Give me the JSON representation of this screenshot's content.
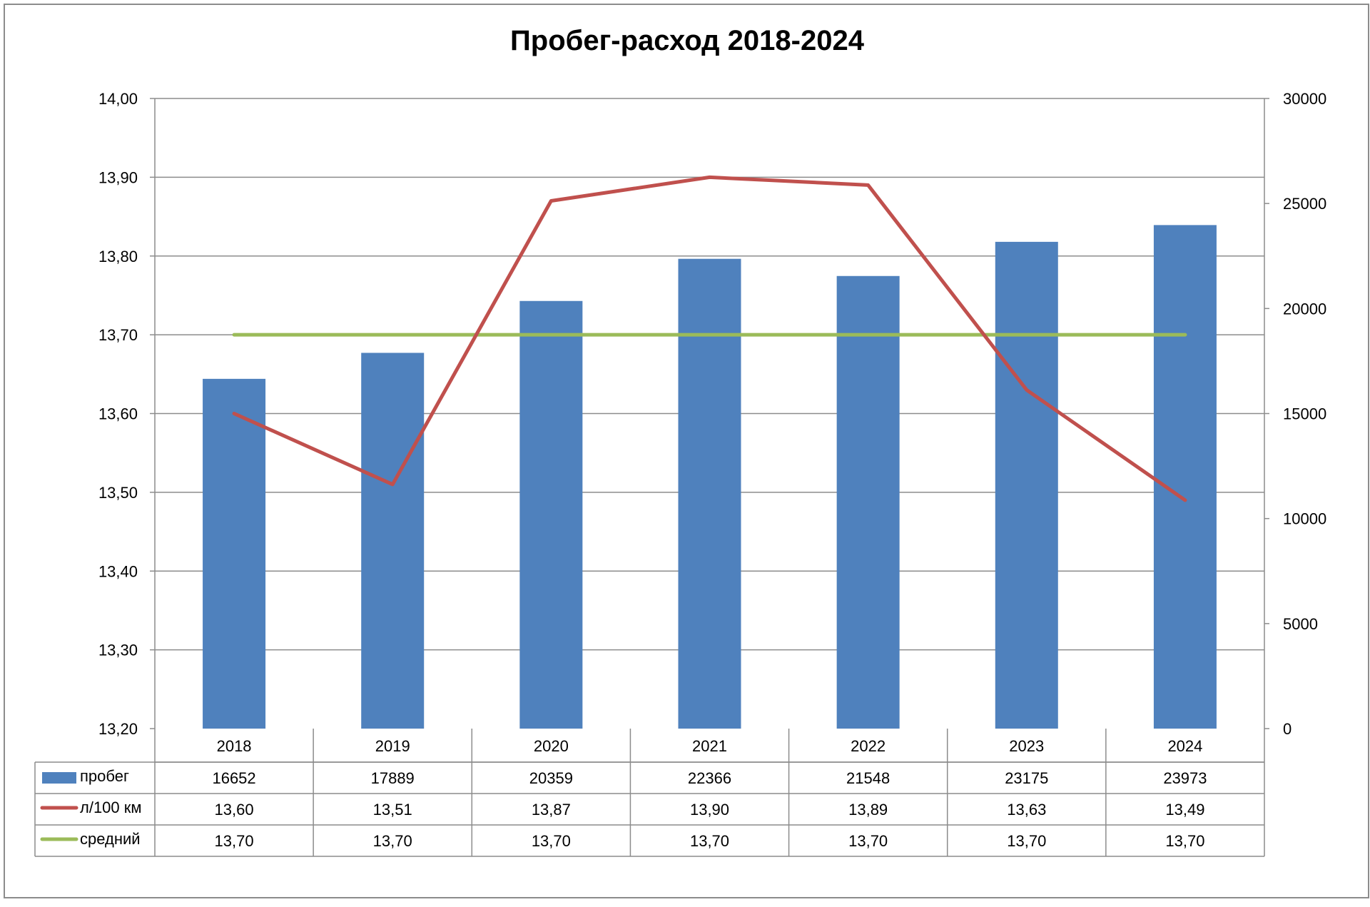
{
  "chart_data": {
    "type": "bar",
    "title": "Пробег-расход 2018-2024",
    "categories": [
      "2018",
      "2019",
      "2020",
      "2021",
      "2022",
      "2023",
      "2024"
    ],
    "series": [
      {
        "name": "пробег",
        "type": "bar",
        "axis": "right",
        "color": "#4F81BD",
        "values": [
          16652,
          17889,
          20359,
          22366,
          21548,
          23175,
          23973
        ],
        "labels": [
          "16652",
          "17889",
          "20359",
          "22366",
          "21548",
          "23175",
          "23973"
        ]
      },
      {
        "name": "л/100 км",
        "type": "line",
        "axis": "left",
        "color": "#C0504D",
        "values": [
          13.6,
          13.51,
          13.87,
          13.9,
          13.89,
          13.63,
          13.49
        ],
        "labels": [
          "13,60",
          "13,51",
          "13,87",
          "13,90",
          "13,89",
          "13,63",
          "13,49"
        ]
      },
      {
        "name": "средний",
        "type": "line",
        "axis": "left",
        "color": "#9BBB59",
        "values": [
          13.7,
          13.7,
          13.7,
          13.7,
          13.7,
          13.7,
          13.7
        ],
        "labels": [
          "13,70",
          "13,70",
          "13,70",
          "13,70",
          "13,70",
          "13,70",
          "13,70"
        ]
      }
    ],
    "y_left": {
      "min": 13.2,
      "max": 14.0,
      "ticks": [
        13.2,
        13.3,
        13.4,
        13.5,
        13.6,
        13.7,
        13.8,
        13.9,
        14.0
      ],
      "tick_labels": [
        "13,20",
        "13,30",
        "13,40",
        "13,50",
        "13,60",
        "13,70",
        "13,80",
        "13,90",
        "14,00"
      ]
    },
    "y_right": {
      "min": 0,
      "max": 30000,
      "ticks": [
        0,
        5000,
        10000,
        15000,
        20000,
        25000,
        30000
      ],
      "tick_labels": [
        "0",
        "5000",
        "10000",
        "15000",
        "20000",
        "25000",
        "30000"
      ]
    },
    "grid": true,
    "legend": "data-table"
  }
}
